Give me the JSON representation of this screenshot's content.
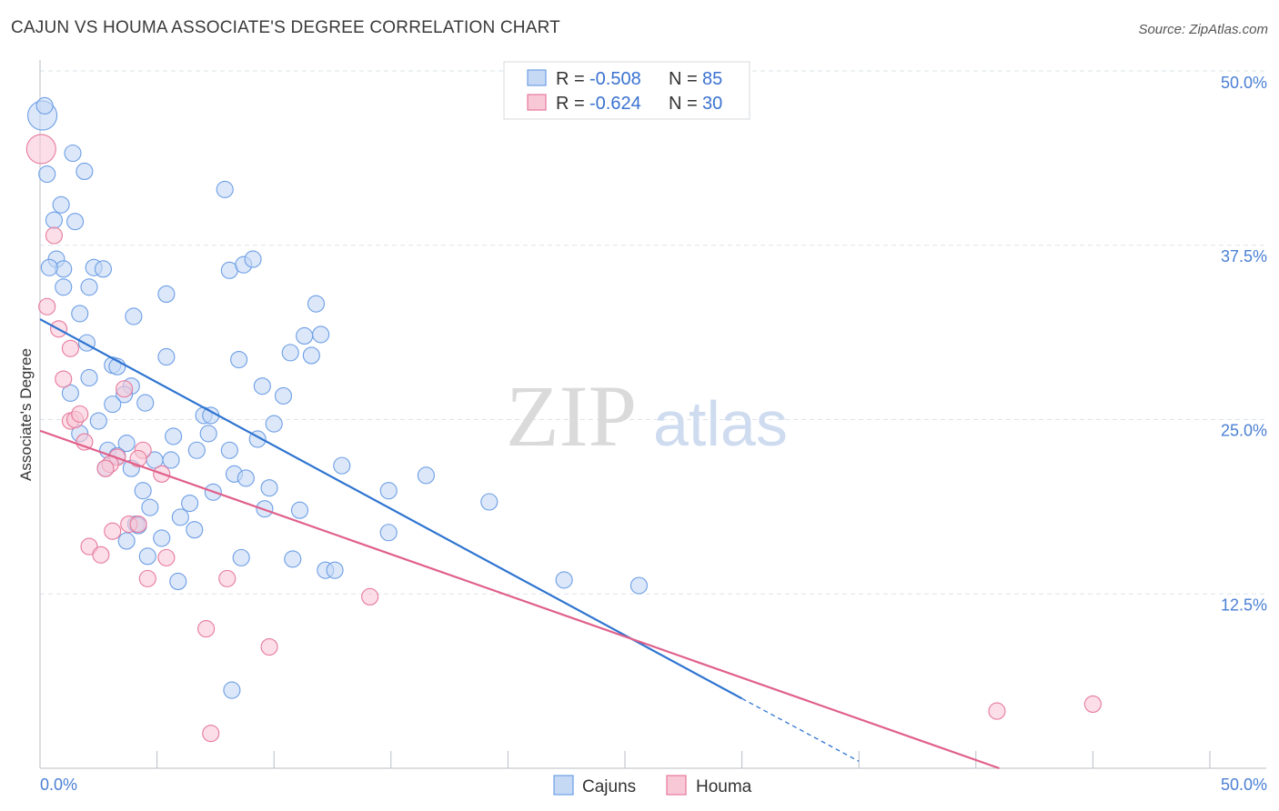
{
  "title": "CAJUN VS HOUMA ASSOCIATE'S DEGREE CORRELATION CHART",
  "source": "Source: ZipAtlas.com",
  "watermark": {
    "zip": "ZIP",
    "atlas": "atlas"
  },
  "colors": {
    "blue": "#6d9ee6",
    "blue_fill": "#c5d9f5",
    "blue_line": "#2f74d0",
    "pink": "#e7799c",
    "pink_fill": "#f8c8d7",
    "pink_line": "#e0608a",
    "grid": "#dde3ea",
    "tick_text": "#4a7fd4"
  },
  "chart_data": {
    "type": "scatter",
    "xlabel": "",
    "ylabel": "Associate's Degree",
    "xlim": [
      0,
      50
    ],
    "ylim": [
      0,
      50
    ],
    "x_tick_labels": [
      {
        "v": 0,
        "label": "0.0%"
      },
      {
        "v": 50,
        "label": "50.0%"
      }
    ],
    "y_tick_labels": [
      {
        "v": 12.5,
        "label": "12.5%"
      },
      {
        "v": 25,
        "label": "25.0%"
      },
      {
        "v": 37.5,
        "label": "37.5%"
      },
      {
        "v": 50,
        "label": "50.0%"
      }
    ],
    "grid": true,
    "legend_position": "top-center",
    "series": [
      {
        "name": "Cajuns",
        "R": "-0.508",
        "N": "85",
        "trend": {
          "x0": 0,
          "y0": 32.2,
          "x1": 30,
          "y1": 5.0,
          "dash_to_x": 35.0,
          "dash_to_y": 0.5
        },
        "points": [
          {
            "x": 0.1,
            "y": 46.8,
            "big": true
          },
          {
            "x": 0.2,
            "y": 47.5
          },
          {
            "x": 1.4,
            "y": 44.1
          },
          {
            "x": 1.9,
            "y": 42.8
          },
          {
            "x": 0.3,
            "y": 42.6
          },
          {
            "x": 0.9,
            "y": 40.4
          },
          {
            "x": 0.6,
            "y": 39.3
          },
          {
            "x": 1.5,
            "y": 39.2
          },
          {
            "x": 7.9,
            "y": 41.5
          },
          {
            "x": 0.7,
            "y": 36.5
          },
          {
            "x": 1.0,
            "y": 35.8
          },
          {
            "x": 0.4,
            "y": 35.9
          },
          {
            "x": 2.3,
            "y": 35.9
          },
          {
            "x": 2.7,
            "y": 35.8
          },
          {
            "x": 8.1,
            "y": 35.7
          },
          {
            "x": 8.7,
            "y": 36.1
          },
          {
            "x": 9.1,
            "y": 36.5
          },
          {
            "x": 1.0,
            "y": 34.5
          },
          {
            "x": 2.1,
            "y": 34.5
          },
          {
            "x": 5.4,
            "y": 34.0
          },
          {
            "x": 11.8,
            "y": 33.3
          },
          {
            "x": 1.7,
            "y": 32.6
          },
          {
            "x": 4.0,
            "y": 32.4
          },
          {
            "x": 2.0,
            "y": 30.5
          },
          {
            "x": 11.3,
            "y": 31.0
          },
          {
            "x": 12.0,
            "y": 31.1
          },
          {
            "x": 5.4,
            "y": 29.5
          },
          {
            "x": 8.5,
            "y": 29.3
          },
          {
            "x": 10.7,
            "y": 29.8
          },
          {
            "x": 11.6,
            "y": 29.6
          },
          {
            "x": 3.1,
            "y": 28.9
          },
          {
            "x": 3.3,
            "y": 28.8
          },
          {
            "x": 2.1,
            "y": 28.0
          },
          {
            "x": 3.9,
            "y": 27.4
          },
          {
            "x": 9.5,
            "y": 27.4
          },
          {
            "x": 1.3,
            "y": 26.9
          },
          {
            "x": 3.6,
            "y": 26.8
          },
          {
            "x": 10.4,
            "y": 26.7
          },
          {
            "x": 3.1,
            "y": 26.1
          },
          {
            "x": 4.5,
            "y": 26.2
          },
          {
            "x": 7.0,
            "y": 25.3
          },
          {
            "x": 7.3,
            "y": 25.3
          },
          {
            "x": 2.5,
            "y": 24.9
          },
          {
            "x": 10.0,
            "y": 24.7
          },
          {
            "x": 1.7,
            "y": 24.0
          },
          {
            "x": 7.2,
            "y": 24.0
          },
          {
            "x": 5.7,
            "y": 23.8
          },
          {
            "x": 9.3,
            "y": 23.6
          },
          {
            "x": 3.7,
            "y": 23.3
          },
          {
            "x": 2.9,
            "y": 22.8
          },
          {
            "x": 6.7,
            "y": 22.8
          },
          {
            "x": 8.1,
            "y": 22.8
          },
          {
            "x": 3.3,
            "y": 22.4
          },
          {
            "x": 4.9,
            "y": 22.1
          },
          {
            "x": 5.6,
            "y": 22.1
          },
          {
            "x": 12.9,
            "y": 21.7
          },
          {
            "x": 3.9,
            "y": 21.5
          },
          {
            "x": 2.8,
            "y": 21.5
          },
          {
            "x": 8.3,
            "y": 21.1
          },
          {
            "x": 8.8,
            "y": 20.8
          },
          {
            "x": 16.5,
            "y": 21.0
          },
          {
            "x": 4.4,
            "y": 19.9
          },
          {
            "x": 7.4,
            "y": 19.8
          },
          {
            "x": 9.8,
            "y": 20.1
          },
          {
            "x": 14.9,
            "y": 19.9
          },
          {
            "x": 19.2,
            "y": 19.1
          },
          {
            "x": 6.4,
            "y": 19.0
          },
          {
            "x": 4.7,
            "y": 18.7
          },
          {
            "x": 9.6,
            "y": 18.6
          },
          {
            "x": 11.1,
            "y": 18.5
          },
          {
            "x": 6.0,
            "y": 18.0
          },
          {
            "x": 4.1,
            "y": 17.5
          },
          {
            "x": 4.2,
            "y": 17.4
          },
          {
            "x": 6.6,
            "y": 17.1
          },
          {
            "x": 14.9,
            "y": 16.9
          },
          {
            "x": 3.7,
            "y": 16.3
          },
          {
            "x": 5.2,
            "y": 16.5
          },
          {
            "x": 4.6,
            "y": 15.2
          },
          {
            "x": 8.6,
            "y": 15.1
          },
          {
            "x": 10.8,
            "y": 15.0
          },
          {
            "x": 12.2,
            "y": 14.2
          },
          {
            "x": 12.6,
            "y": 14.2
          },
          {
            "x": 5.9,
            "y": 13.4
          },
          {
            "x": 22.4,
            "y": 13.5
          },
          {
            "x": 25.6,
            "y": 13.1
          },
          {
            "x": 8.2,
            "y": 5.6
          }
        ]
      },
      {
        "name": "Houma",
        "R": "-0.624",
        "N": "30",
        "trend": {
          "x0": 0,
          "y0": 24.2,
          "x1": 41.0,
          "y1": 0.0
        },
        "points": [
          {
            "x": 0.05,
            "y": 44.4,
            "big": true
          },
          {
            "x": 0.6,
            "y": 38.2
          },
          {
            "x": 0.3,
            "y": 33.1
          },
          {
            "x": 0.8,
            "y": 31.5
          },
          {
            "x": 1.3,
            "y": 30.1
          },
          {
            "x": 1.0,
            "y": 27.9
          },
          {
            "x": 3.6,
            "y": 27.2
          },
          {
            "x": 1.3,
            "y": 24.9
          },
          {
            "x": 1.5,
            "y": 25.0
          },
          {
            "x": 1.7,
            "y": 25.4
          },
          {
            "x": 1.9,
            "y": 23.4
          },
          {
            "x": 4.4,
            "y": 22.8
          },
          {
            "x": 3.3,
            "y": 22.3
          },
          {
            "x": 4.2,
            "y": 22.2
          },
          {
            "x": 3.0,
            "y": 21.8
          },
          {
            "x": 2.8,
            "y": 21.5
          },
          {
            "x": 5.2,
            "y": 21.1
          },
          {
            "x": 3.8,
            "y": 17.5
          },
          {
            "x": 4.2,
            "y": 17.5
          },
          {
            "x": 3.1,
            "y": 17.0
          },
          {
            "x": 2.1,
            "y": 15.9
          },
          {
            "x": 2.6,
            "y": 15.3
          },
          {
            "x": 5.4,
            "y": 15.1
          },
          {
            "x": 4.6,
            "y": 13.6
          },
          {
            "x": 8.0,
            "y": 13.6
          },
          {
            "x": 14.1,
            "y": 12.3
          },
          {
            "x": 7.1,
            "y": 10.0
          },
          {
            "x": 9.8,
            "y": 8.7
          },
          {
            "x": 7.3,
            "y": 2.5
          },
          {
            "x": 40.9,
            "y": 4.1
          },
          {
            "x": 45.0,
            "y": 4.6
          }
        ]
      }
    ]
  },
  "legend": {
    "r_label": "R =",
    "n_label": "N ="
  }
}
